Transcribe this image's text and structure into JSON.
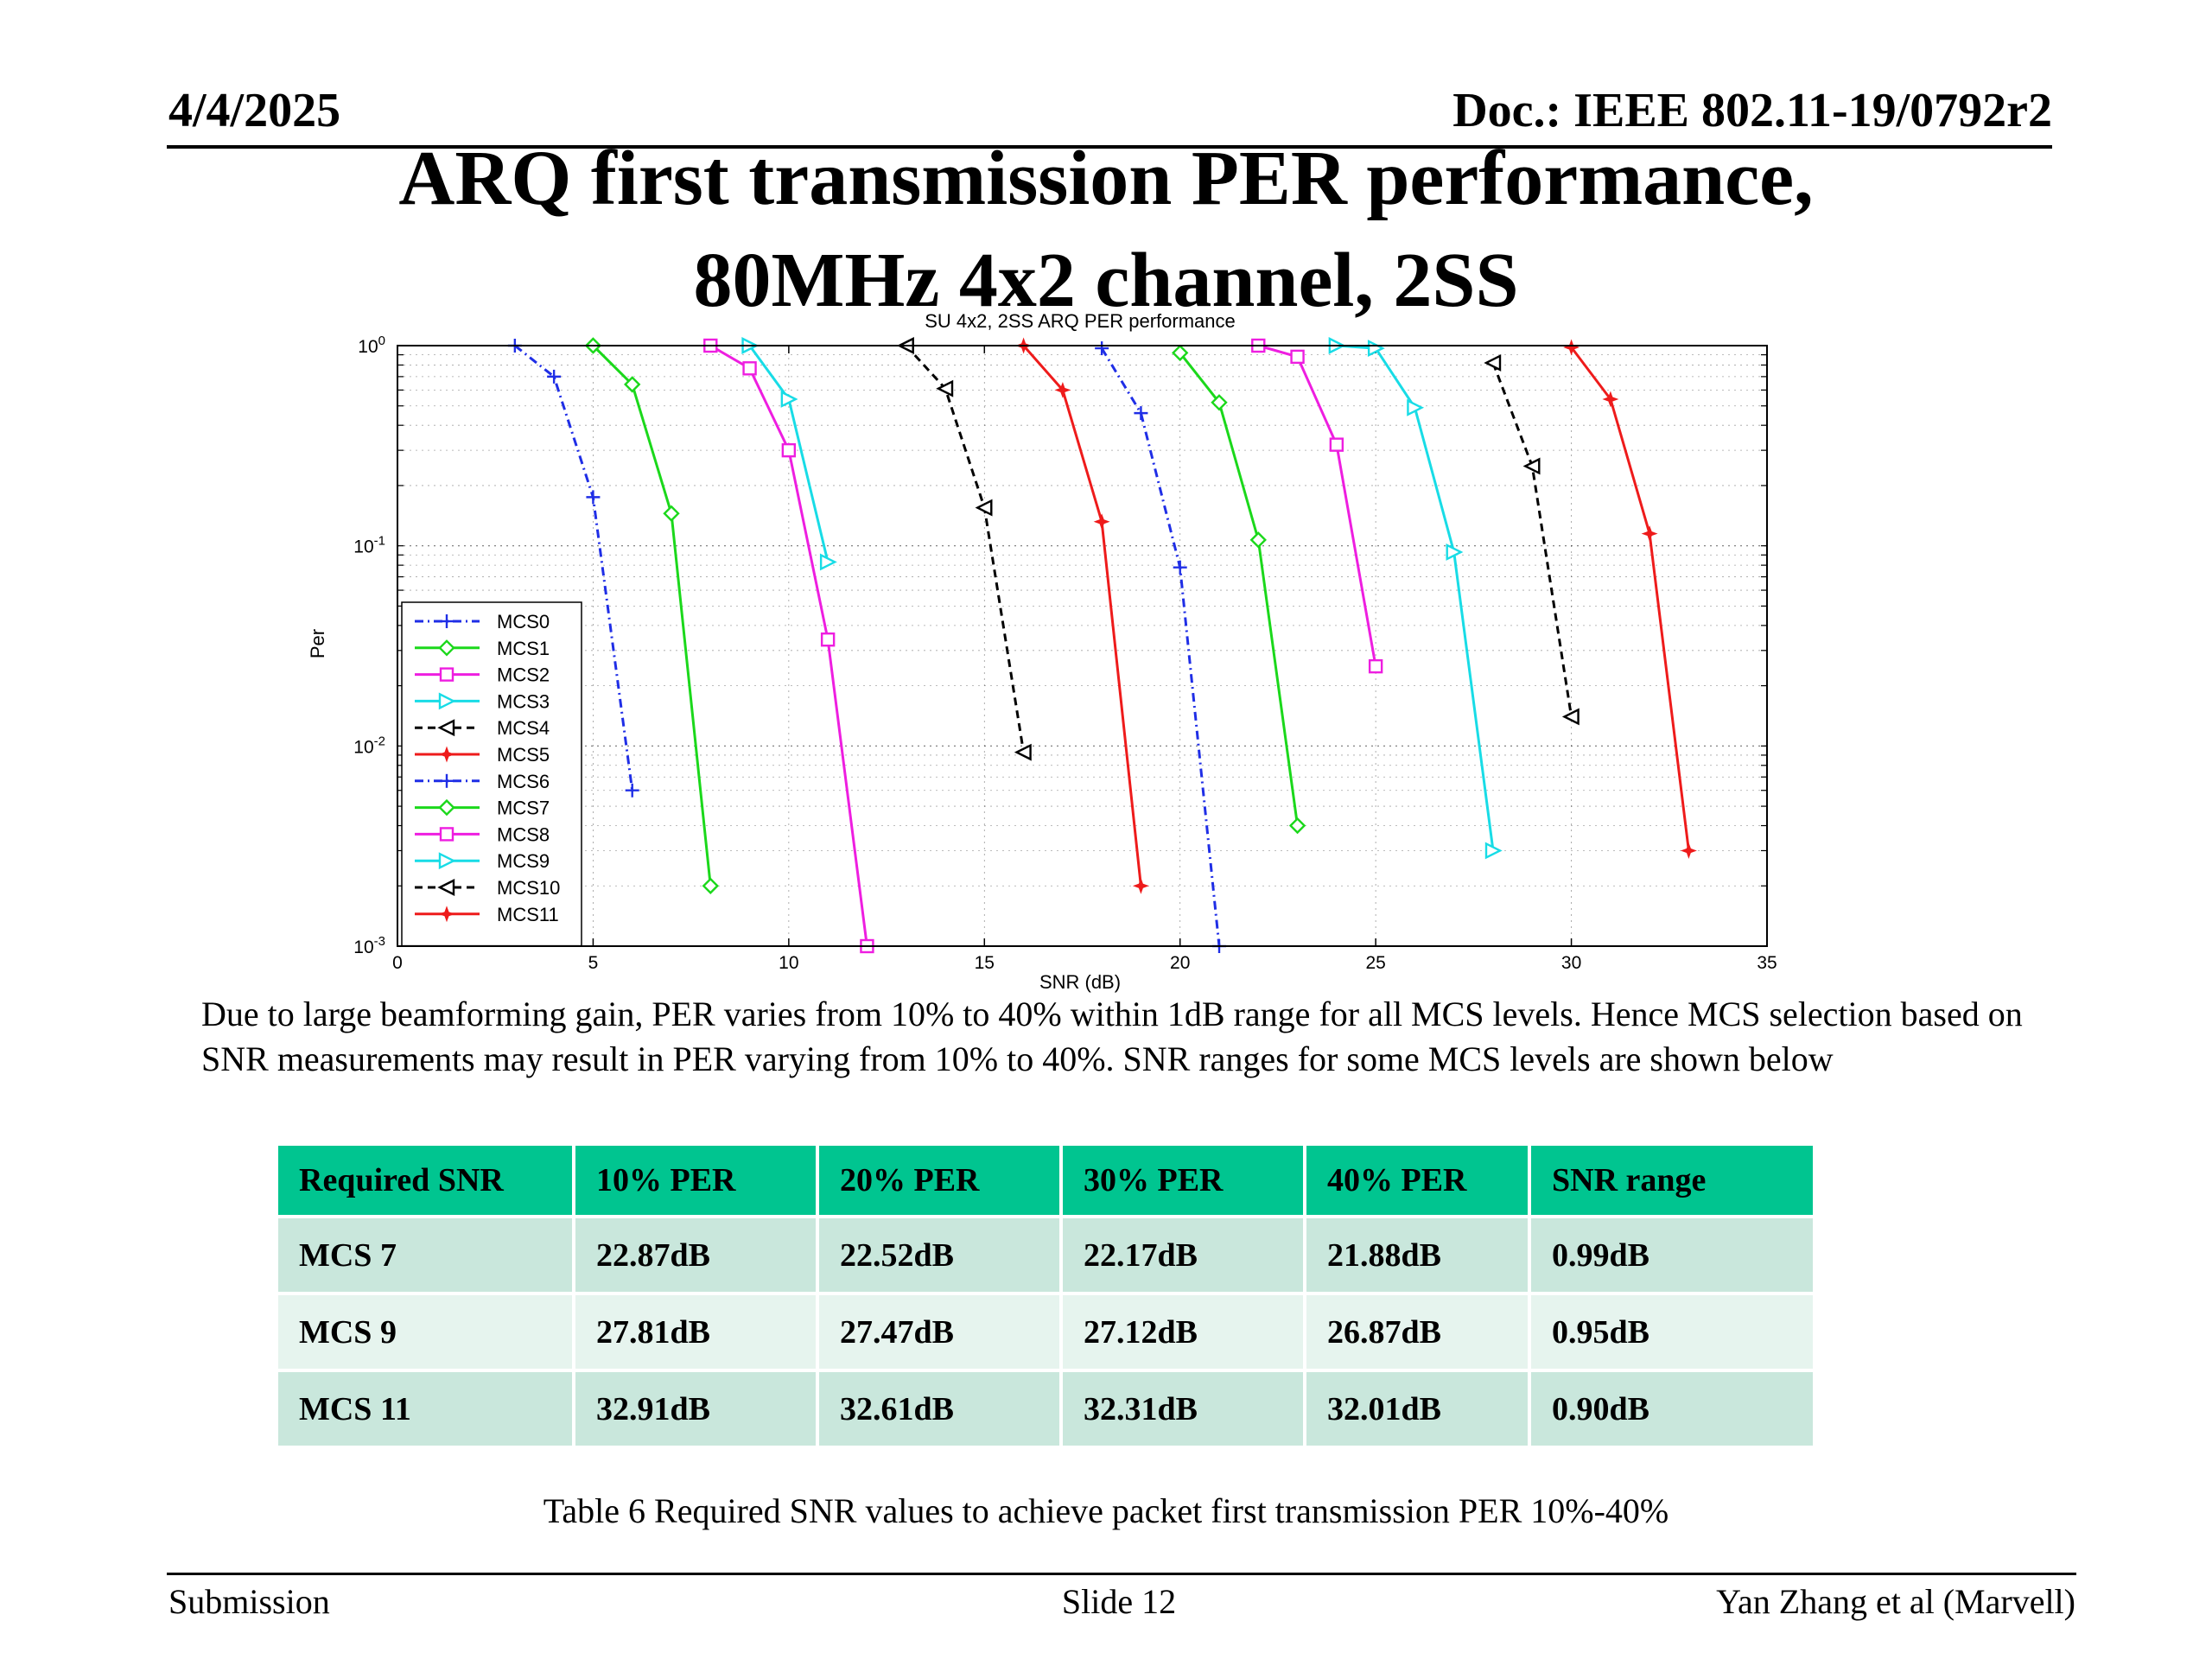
{
  "header": {
    "date": "4/4/2025",
    "doc": "Doc.: IEEE 802.11-19/0792r2"
  },
  "title": {
    "line1": "ARQ first transmission PER performance,",
    "line2": "80MHz 4x2 channel, 2SS"
  },
  "paragraph": "Due to large beamforming gain, PER varies from 10% to 40% within 1dB range for all MCS levels. Hence MCS selection based on SNR measurements may result in PER varying from 10% to 40%. SNR ranges for some MCS levels are shown below",
  "table": {
    "headers": [
      "Required SNR",
      "10% PER",
      "20% PER",
      "30% PER",
      "40% PER",
      "SNR range"
    ],
    "rows": [
      [
        "MCS 7",
        "22.87dB",
        "22.52dB",
        "22.17dB",
        "21.88dB",
        "0.99dB"
      ],
      [
        "MCS 9",
        "27.81dB",
        "27.47dB",
        "27.12dB",
        "26.87dB",
        "0.95dB"
      ],
      [
        "MCS 11",
        "32.91dB",
        "32.61dB",
        "32.31dB",
        "32.01dB",
        "0.90dB"
      ]
    ],
    "caption": "Table 6 Required SNR values to achieve packet first transmission PER 10%-40%"
  },
  "footer": {
    "left": "Submission",
    "center": "Slide 12",
    "right": "Yan Zhang et al (Marvell)"
  },
  "chart_data": {
    "type": "line",
    "title": "SU 4x2, 2SS ARQ PER performance",
    "xlabel": "SNR (dB)",
    "ylabel": "Per",
    "xlim": [
      0,
      35
    ],
    "ylim": [
      0.001,
      1
    ],
    "y_scale": "log",
    "grid": true,
    "legend_position": "bottom-left",
    "x_ticks": [
      "0",
      "5",
      "10",
      "15",
      "20",
      "25",
      "30",
      "35"
    ],
    "y_ticks": [
      {
        "base": "10",
        "exp": "0",
        "value": 1
      },
      {
        "base": "10",
        "exp": "-1",
        "value": 0.1
      },
      {
        "base": "10",
        "exp": "-2",
        "value": 0.01
      },
      {
        "base": "10",
        "exp": "-3",
        "value": 0.001
      }
    ],
    "series": [
      {
        "name": "MCS0",
        "color": "#1f2ee6",
        "dash": "dashdot",
        "marker": "plus",
        "points": [
          [
            3,
            1.0
          ],
          [
            4,
            0.7
          ],
          [
            5,
            0.175
          ],
          [
            6,
            0.006
          ]
        ]
      },
      {
        "name": "MCS1",
        "color": "#1bd81b",
        "dash": "solid",
        "marker": "diamond",
        "points": [
          [
            5,
            1.0
          ],
          [
            6,
            0.64
          ],
          [
            7,
            0.145
          ],
          [
            8,
            0.002
          ]
        ]
      },
      {
        "name": "MCS2",
        "color": "#ee1ee0",
        "dash": "solid",
        "marker": "square",
        "points": [
          [
            8,
            1.0
          ],
          [
            9,
            0.77
          ],
          [
            10,
            0.3
          ],
          [
            11,
            0.034
          ],
          [
            12,
            0.001
          ]
        ]
      },
      {
        "name": "MCS3",
        "color": "#18dce6",
        "dash": "solid",
        "marker": "triangle-right",
        "points": [
          [
            9,
            1.0
          ],
          [
            10,
            0.54
          ],
          [
            11,
            0.083
          ]
        ]
      },
      {
        "name": "MCS4",
        "color": "#000000",
        "dash": "dashed",
        "marker": "triangle-left",
        "points": [
          [
            13,
            1.0
          ],
          [
            14,
            0.61
          ],
          [
            15,
            0.155
          ],
          [
            16,
            0.0093
          ]
        ]
      },
      {
        "name": "MCS5",
        "color": "#ee1b1b",
        "dash": "solid",
        "marker": "star",
        "points": [
          [
            16,
            1.0
          ],
          [
            17,
            0.6
          ],
          [
            18,
            0.132
          ],
          [
            19,
            0.002
          ]
        ]
      },
      {
        "name": "MCS6",
        "color": "#1f2ee6",
        "dash": "dashdot",
        "marker": "plus",
        "points": [
          [
            18,
            0.97
          ],
          [
            19,
            0.46
          ],
          [
            20,
            0.078
          ],
          [
            21,
            0.001
          ]
        ]
      },
      {
        "name": "MCS7",
        "color": "#1bd81b",
        "dash": "solid",
        "marker": "diamond",
        "points": [
          [
            20,
            0.92
          ],
          [
            21,
            0.52
          ],
          [
            22,
            0.107
          ],
          [
            23,
            0.004
          ]
        ]
      },
      {
        "name": "MCS8",
        "color": "#ee1ee0",
        "dash": "solid",
        "marker": "square",
        "points": [
          [
            22,
            1.0
          ],
          [
            23,
            0.88
          ],
          [
            24,
            0.32
          ],
          [
            25,
            0.025
          ]
        ]
      },
      {
        "name": "MCS9",
        "color": "#18dce6",
        "dash": "solid",
        "marker": "triangle-right",
        "points": [
          [
            24,
            1.0
          ],
          [
            25,
            0.97
          ],
          [
            26,
            0.49
          ],
          [
            27,
            0.093
          ],
          [
            28,
            0.003
          ]
        ]
      },
      {
        "name": "MCS10",
        "color": "#000000",
        "dash": "dashed",
        "marker": "triangle-left",
        "points": [
          [
            28,
            0.82
          ],
          [
            29,
            0.25
          ],
          [
            30,
            0.014
          ]
        ]
      },
      {
        "name": "MCS11",
        "color": "#ee1b1b",
        "dash": "solid",
        "marker": "star",
        "points": [
          [
            30,
            0.98
          ],
          [
            31,
            0.54
          ],
          [
            32,
            0.115
          ],
          [
            33,
            0.003
          ]
        ]
      }
    ]
  }
}
